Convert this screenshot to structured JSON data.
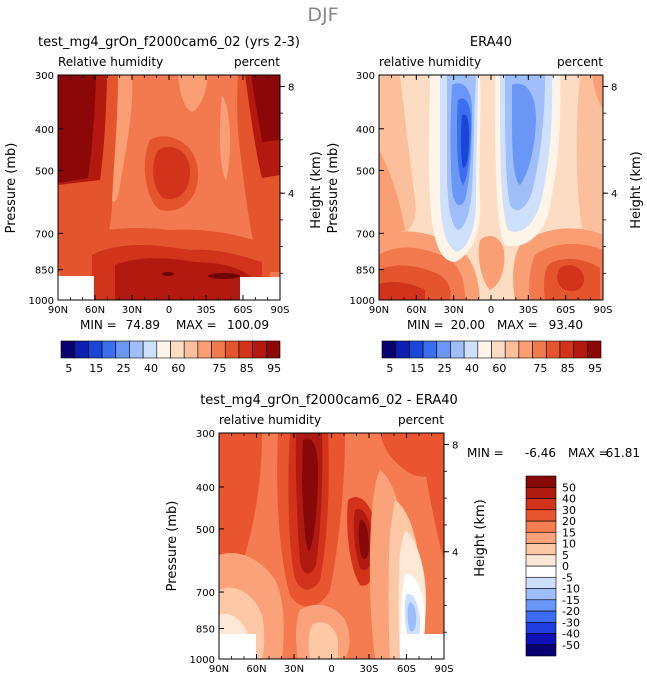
{
  "figure": {
    "title": "DJF"
  },
  "palette": {
    "rh": [
      "#08006e",
      "#0d1eb0",
      "#1a46d8",
      "#3c6ef0",
      "#6a96f6",
      "#9fbefa",
      "#cfe0fc",
      "#fff4e8",
      "#fddcc4",
      "#fcbf9c",
      "#fa9e74",
      "#f27a4e",
      "#e5552d",
      "#d1341b",
      "#b3190f",
      "#8c0707"
    ],
    "diff": [
      "#070070",
      "#1010b8",
      "#1f3ee0",
      "#3d6cf4",
      "#6a96f8",
      "#9dbefb",
      "#cddffd",
      "#ffffff",
      "#fde8d8",
      "#fcc8a6",
      "#faa27a",
      "#f57b50",
      "#e8552e",
      "#d3331a",
      "#b01a10",
      "#860808"
    ]
  },
  "chart_data": [
    {
      "id": "model",
      "type": "heatmap",
      "title": "test_mg4_grOn_f2000cam6_02 (yrs 2-3)",
      "left_label": "Relative humidity",
      "right_label": "percent",
      "ylabel": "Pressure (mb)",
      "y2label": "Height (km)",
      "xticks": [
        "90N",
        "60N",
        "30N",
        "0",
        "30S",
        "60S",
        "90S"
      ],
      "yticks": [
        "300",
        "400",
        "500",
        "700",
        "850",
        "1000"
      ],
      "y2ticks": [
        "8",
        "4"
      ],
      "stats": {
        "min_label": "MIN =",
        "min": "74.89",
        "max_label": "MAX =",
        "max": "100.09"
      },
      "colorbar": {
        "orientation": "horizontal",
        "tick_labels": [
          "5",
          "15",
          "25",
          "40",
          "60",
          "75",
          "85",
          "95"
        ],
        "levels": [
          5,
          10,
          15,
          20,
          25,
          30,
          35,
          40,
          50,
          60,
          65,
          70,
          75,
          80,
          85,
          90,
          95
        ]
      }
    },
    {
      "id": "obs",
      "type": "heatmap",
      "title": "ERA40",
      "left_label": "relative humidity",
      "right_label": "percent",
      "ylabel": "Pressure (mb)",
      "y2label": "Height (km)",
      "xticks": [
        "90N",
        "60N",
        "30N",
        "0",
        "30S",
        "60S",
        "90S"
      ],
      "yticks": [
        "300",
        "400",
        "500",
        "700",
        "850",
        "1000"
      ],
      "y2ticks": [
        "8",
        "4"
      ],
      "stats": {
        "min_label": "MIN =",
        "min": "20.00",
        "max_label": "MAX =",
        "max": "93.40"
      },
      "colorbar": {
        "orientation": "horizontal",
        "tick_labels": [
          "5",
          "15",
          "25",
          "40",
          "60",
          "75",
          "85",
          "95"
        ],
        "levels": [
          5,
          10,
          15,
          20,
          25,
          30,
          35,
          40,
          50,
          60,
          65,
          70,
          75,
          80,
          85,
          90,
          95
        ]
      }
    },
    {
      "id": "diff",
      "type": "heatmap",
      "title": "test_mg4_grOn_f2000cam6_02 - ERA40",
      "left_label": "relative humidity",
      "right_label": "percent",
      "ylabel": "Pressure (mb)",
      "y2label": "Height (km)",
      "xticks": [
        "90N",
        "60N",
        "30N",
        "0",
        "30S",
        "60S",
        "90S"
      ],
      "yticks": [
        "300",
        "400",
        "500",
        "700",
        "850",
        "1000"
      ],
      "y2ticks": [
        "8",
        "4"
      ],
      "stats": {
        "min_label": "MIN =",
        "min": "-6.46",
        "max_label": "MAX =",
        "max": "61.81"
      },
      "colorbar": {
        "orientation": "vertical",
        "tick_labels": [
          "50",
          "40",
          "30",
          "20",
          "15",
          "10",
          "5",
          "0",
          "-5",
          "-10",
          "-15",
          "-20",
          "-30",
          "-40",
          "-50"
        ],
        "levels": [
          -50,
          -40,
          -30,
          -20,
          -15,
          -10,
          -5,
          0,
          5,
          10,
          15,
          20,
          30,
          40,
          50
        ]
      }
    }
  ]
}
